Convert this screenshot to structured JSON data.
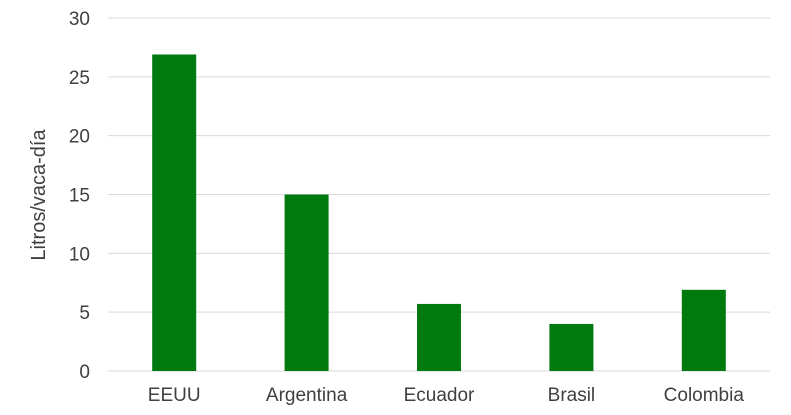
{
  "chart_data": {
    "type": "bar",
    "title": "",
    "xlabel": "",
    "ylabel": "Litros/vaca-día",
    "categories": [
      "EEUU",
      "Argentina",
      "Ecuador",
      "Brasil",
      "Colombia"
    ],
    "values": [
      26.9,
      15.0,
      5.7,
      4.0,
      6.9
    ],
    "ylim": [
      0,
      30
    ],
    "yticks": [
      "0",
      "5",
      "10",
      "15",
      "20",
      "25",
      "30"
    ],
    "grid": true,
    "legend": "none",
    "bar_color": "#007a0f",
    "grid_color": "#d9d9d9"
  }
}
